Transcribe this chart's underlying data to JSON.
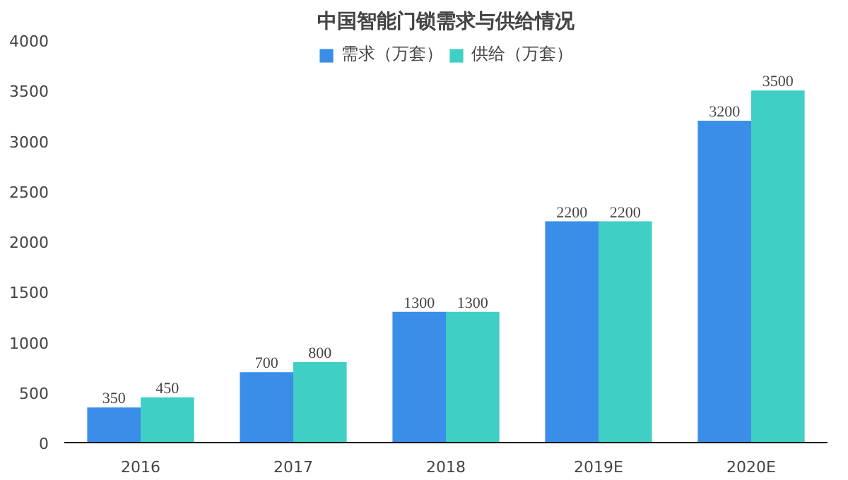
{
  "chart_data": {
    "type": "bar",
    "title": "中国智能门锁需求与供给情况",
    "categories": [
      "2016",
      "2017",
      "2018",
      "2019E",
      "2020E"
    ],
    "series": [
      {
        "name": "需求（万套）",
        "color": "#3b8ee8",
        "values": [
          350,
          700,
          1300,
          2200,
          3200
        ]
      },
      {
        "name": "供给（万套）",
        "color": "#3fcfc4",
        "values": [
          450,
          800,
          1300,
          2200,
          3500
        ]
      }
    ],
    "ylim": [
      0,
      4000
    ],
    "yticks": [
      0,
      500,
      1000,
      1500,
      2000,
      2500,
      3000,
      3500,
      4000
    ],
    "grid": false,
    "legend": "top",
    "data_labels": true
  }
}
